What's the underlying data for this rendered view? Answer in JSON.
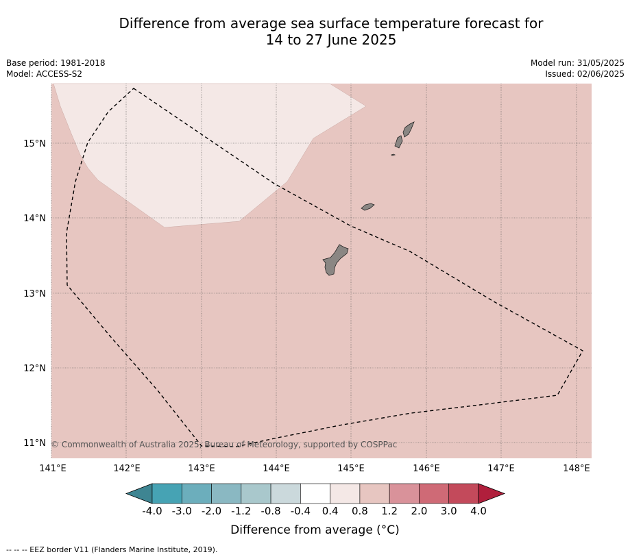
{
  "title_line1": "Difference from average sea surface temperature forecast for",
  "title_line2": "14 to 27 June 2025",
  "meta": {
    "base_period": "Base period: 1981-2018",
    "model": "Model: ACCESS-S2",
    "model_run": "Model run: 31/05/2025",
    "issued": "Issued: 02/06/2025"
  },
  "map": {
    "lon_ticks": [
      "141°E",
      "142°E",
      "143°E",
      "144°E",
      "145°E",
      "146°E",
      "147°E",
      "148°E"
    ],
    "lat_ticks": [
      "15°N",
      "14°N",
      "13°N",
      "12°N",
      "11°N"
    ],
    "copyright": "© Commonwealth of Australia 2025, Bureau of Meteorology, supported by COSPPac",
    "background_color": "#e7c6c1",
    "light_region_color": "#f4e8e6",
    "land_color": "#8a8683"
  },
  "colorbar": {
    "title": "Difference from average (°C)",
    "labels": [
      "-4.0",
      "-3.0",
      "-2.0",
      "-1.2",
      "-0.8",
      "-0.4",
      "0.4",
      "0.8",
      "1.2",
      "2.0",
      "3.0",
      "4.0"
    ],
    "colors": [
      "#46a3b4",
      "#6caebc",
      "#8ab8c2",
      "#a9c8cc",
      "#cbd9dc",
      "#ffffff",
      "#f4e8e6",
      "#e7c6c1",
      "#d9929a",
      "#cf6a76",
      "#c34a5b"
    ],
    "under_color": "#3e8592",
    "over_color": "#b01f3c"
  },
  "legend_note": "--  --  -- EEZ border V11 (Flanders Marine Institute, 2019)."
}
